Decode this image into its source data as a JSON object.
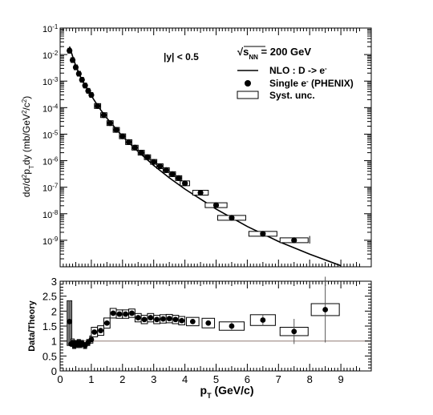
{
  "chart_data": [
    {
      "panel": "top",
      "type": "scatter",
      "xlim": [
        0,
        9.6
      ],
      "ylim": [
        1e-10,
        0.1
      ],
      "yscale": "log",
      "ylabel_parts": {
        "a": "dσ/d",
        "b": "2",
        "c": "p",
        "d": "T",
        "e": "dy (mb/GeV",
        "f": "2",
        "g": "/c",
        "h": "2",
        "i": ")"
      },
      "ytick_labels": [
        {
          "v": 1e-09,
          "exp": "-9"
        },
        {
          "v": 1e-08,
          "exp": "-8"
        },
        {
          "v": 1e-07,
          "exp": "-7"
        },
        {
          "v": 1e-06,
          "exp": "-6"
        },
        {
          "v": 1e-05,
          "exp": "-5"
        },
        {
          "v": 0.0001,
          "exp": "-4"
        },
        {
          "v": 0.001,
          "exp": "-3"
        },
        {
          "v": 0.01,
          "exp": "-2"
        },
        {
          "v": 0.1,
          "exp": "-1"
        }
      ],
      "annotations": {
        "rapidity": "|y| < 0.5",
        "energy_prefix": "√",
        "energy_s": "s",
        "energy_sub": "NN",
        "energy_rest": " = 200 GeV"
      },
      "legend": [
        {
          "kind": "line",
          "label": "NLO : D -> e",
          "sup": "-"
        },
        {
          "kind": "marker",
          "label": "Single e",
          "sup": "-",
          "label2": " (PHENIX)"
        },
        {
          "kind": "box",
          "label": "Syst. unc."
        }
      ],
      "series": [
        {
          "name": "Single e- (PHENIX)",
          "x": [
            0.3,
            0.4,
            0.5,
            0.6,
            0.7,
            0.8,
            0.9,
            1.0,
            1.2,
            1.4,
            1.6,
            1.8,
            2.0,
            2.2,
            2.4,
            2.6,
            2.8,
            3.0,
            3.2,
            3.4,
            3.6,
            3.8,
            4.0,
            4.5,
            5.0,
            5.5,
            6.5,
            7.5,
            8.5
          ],
          "y": [
            0.014,
            0.0062,
            0.0033,
            0.0019,
            0.00112,
            0.00068,
            0.00043,
            0.0003,
            0.000115,
            5.2e-05,
            2.6e-05,
            1.45e-05,
            8.3e-06,
            5e-06,
            3.1e-06,
            2e-06,
            1.35e-06,
            9e-07,
            6.2e-07,
            4.4e-07,
            3.1e-07,
            2.2e-07,
            1.4e-07,
            6.2e-08,
            2.1e-08,
            7e-09,
            1.75e-09,
            1e-09,
            0
          ],
          "xerr_note": "bins",
          "box_halfwidth": [
            0.05,
            0.05,
            0.05,
            0.05,
            0.05,
            0.05,
            0.05,
            0.05,
            0.1,
            0.1,
            0.1,
            0.1,
            0.1,
            0.1,
            0.1,
            0.1,
            0.1,
            0.1,
            0.1,
            0.1,
            0.1,
            0.1,
            0.15,
            0.25,
            0.35,
            0.45,
            0.45,
            0.45,
            0
          ]
        },
        {
          "name": "NLO : D -> e-",
          "type": "line",
          "x": [
            0.3,
            0.4,
            0.5,
            0.7,
            1.0,
            1.25,
            1.5,
            2.0,
            2.5,
            3.0,
            3.5,
            4.0,
            5.0,
            6.0,
            7.0,
            8.0,
            9.0
          ],
          "y": [
            0.02,
            0.0085,
            0.0038,
            0.0011,
            0.00028,
            9.8e-05,
            4e-05,
            8.2e-06,
            2.2e-06,
            6.6e-07,
            2.25e-07,
            8.5e-08,
            1.5e-08,
            3.3e-09,
            9e-10,
            3e-10,
            1.1e-10
          ]
        }
      ]
    },
    {
      "panel": "bottom",
      "type": "scatter",
      "xlim": [
        0,
        9.6
      ],
      "ylim": [
        0,
        3
      ],
      "xlabel": "p",
      "xlabel_sub": "T",
      "xlabel_rest": " (GeV/c)",
      "ylabel": "Data/Theory",
      "xtick_labels": [
        "0",
        "1",
        "2",
        "3",
        "4",
        "5",
        "6",
        "7",
        "8",
        "9"
      ],
      "ytick_labels": [
        "0",
        "0.5",
        "1",
        "1.5",
        "2",
        "2.5",
        "3"
      ],
      "reference_line": 1,
      "series": [
        {
          "name": "Data/Theory",
          "x": [
            0.3,
            0.35,
            0.4,
            0.45,
            0.5,
            0.55,
            0.6,
            0.65,
            0.7,
            0.8,
            0.9,
            1.0,
            1.1,
            1.3,
            1.5,
            1.7,
            1.9,
            2.1,
            2.3,
            2.5,
            2.7,
            2.9,
            3.1,
            3.3,
            3.5,
            3.7,
            3.9,
            4.25,
            4.75,
            5.5,
            6.5,
            7.5,
            8.5
          ],
          "y": [
            1.65,
            0.9,
            0.95,
            0.85,
            0.92,
            0.88,
            0.95,
            0.88,
            0.92,
            0.85,
            0.95,
            1.05,
            1.3,
            1.35,
            1.6,
            1.93,
            1.9,
            1.9,
            1.93,
            1.78,
            1.72,
            1.78,
            1.72,
            1.74,
            1.75,
            1.72,
            1.68,
            1.65,
            1.6,
            1.5,
            1.7,
            1.32,
            2.05
          ],
          "yerr": [
            0.7,
            0.1,
            0.08,
            0.06,
            0.05,
            0.05,
            0.05,
            0.05,
            0.05,
            0.05,
            0.05,
            0.05,
            0.05,
            0.05,
            0.05,
            0.05,
            0.05,
            0.05,
            0.05,
            0.05,
            0.05,
            0.05,
            0.05,
            0.05,
            0.05,
            0.05,
            0.05,
            0.06,
            0.08,
            0.12,
            0.2,
            0.42,
            1.1
          ],
          "syst": [
            0.0,
            0.0,
            0.12,
            0.1,
            0.1,
            0.1,
            0.1,
            0.1,
            0.1,
            0.1,
            0.1,
            0.12,
            0.16,
            0.16,
            0.17,
            0.16,
            0.14,
            0.14,
            0.14,
            0.14,
            0.14,
            0.14,
            0.14,
            0.14,
            0.14,
            0.14,
            0.14,
            0.14,
            0.16,
            0.14,
            0.18,
            0.14,
            0.2
          ],
          "box_halfwidth": [
            0,
            0,
            0.05,
            0.05,
            0.05,
            0.05,
            0.05,
            0.05,
            0.05,
            0.05,
            0.05,
            0.05,
            0.1,
            0.1,
            0.1,
            0.1,
            0.1,
            0.1,
            0.1,
            0.1,
            0.1,
            0.1,
            0.1,
            0.1,
            0.1,
            0.1,
            0.1,
            0.2,
            0.2,
            0.4,
            0.4,
            0.45,
            0.45
          ]
        }
      ]
    }
  ]
}
